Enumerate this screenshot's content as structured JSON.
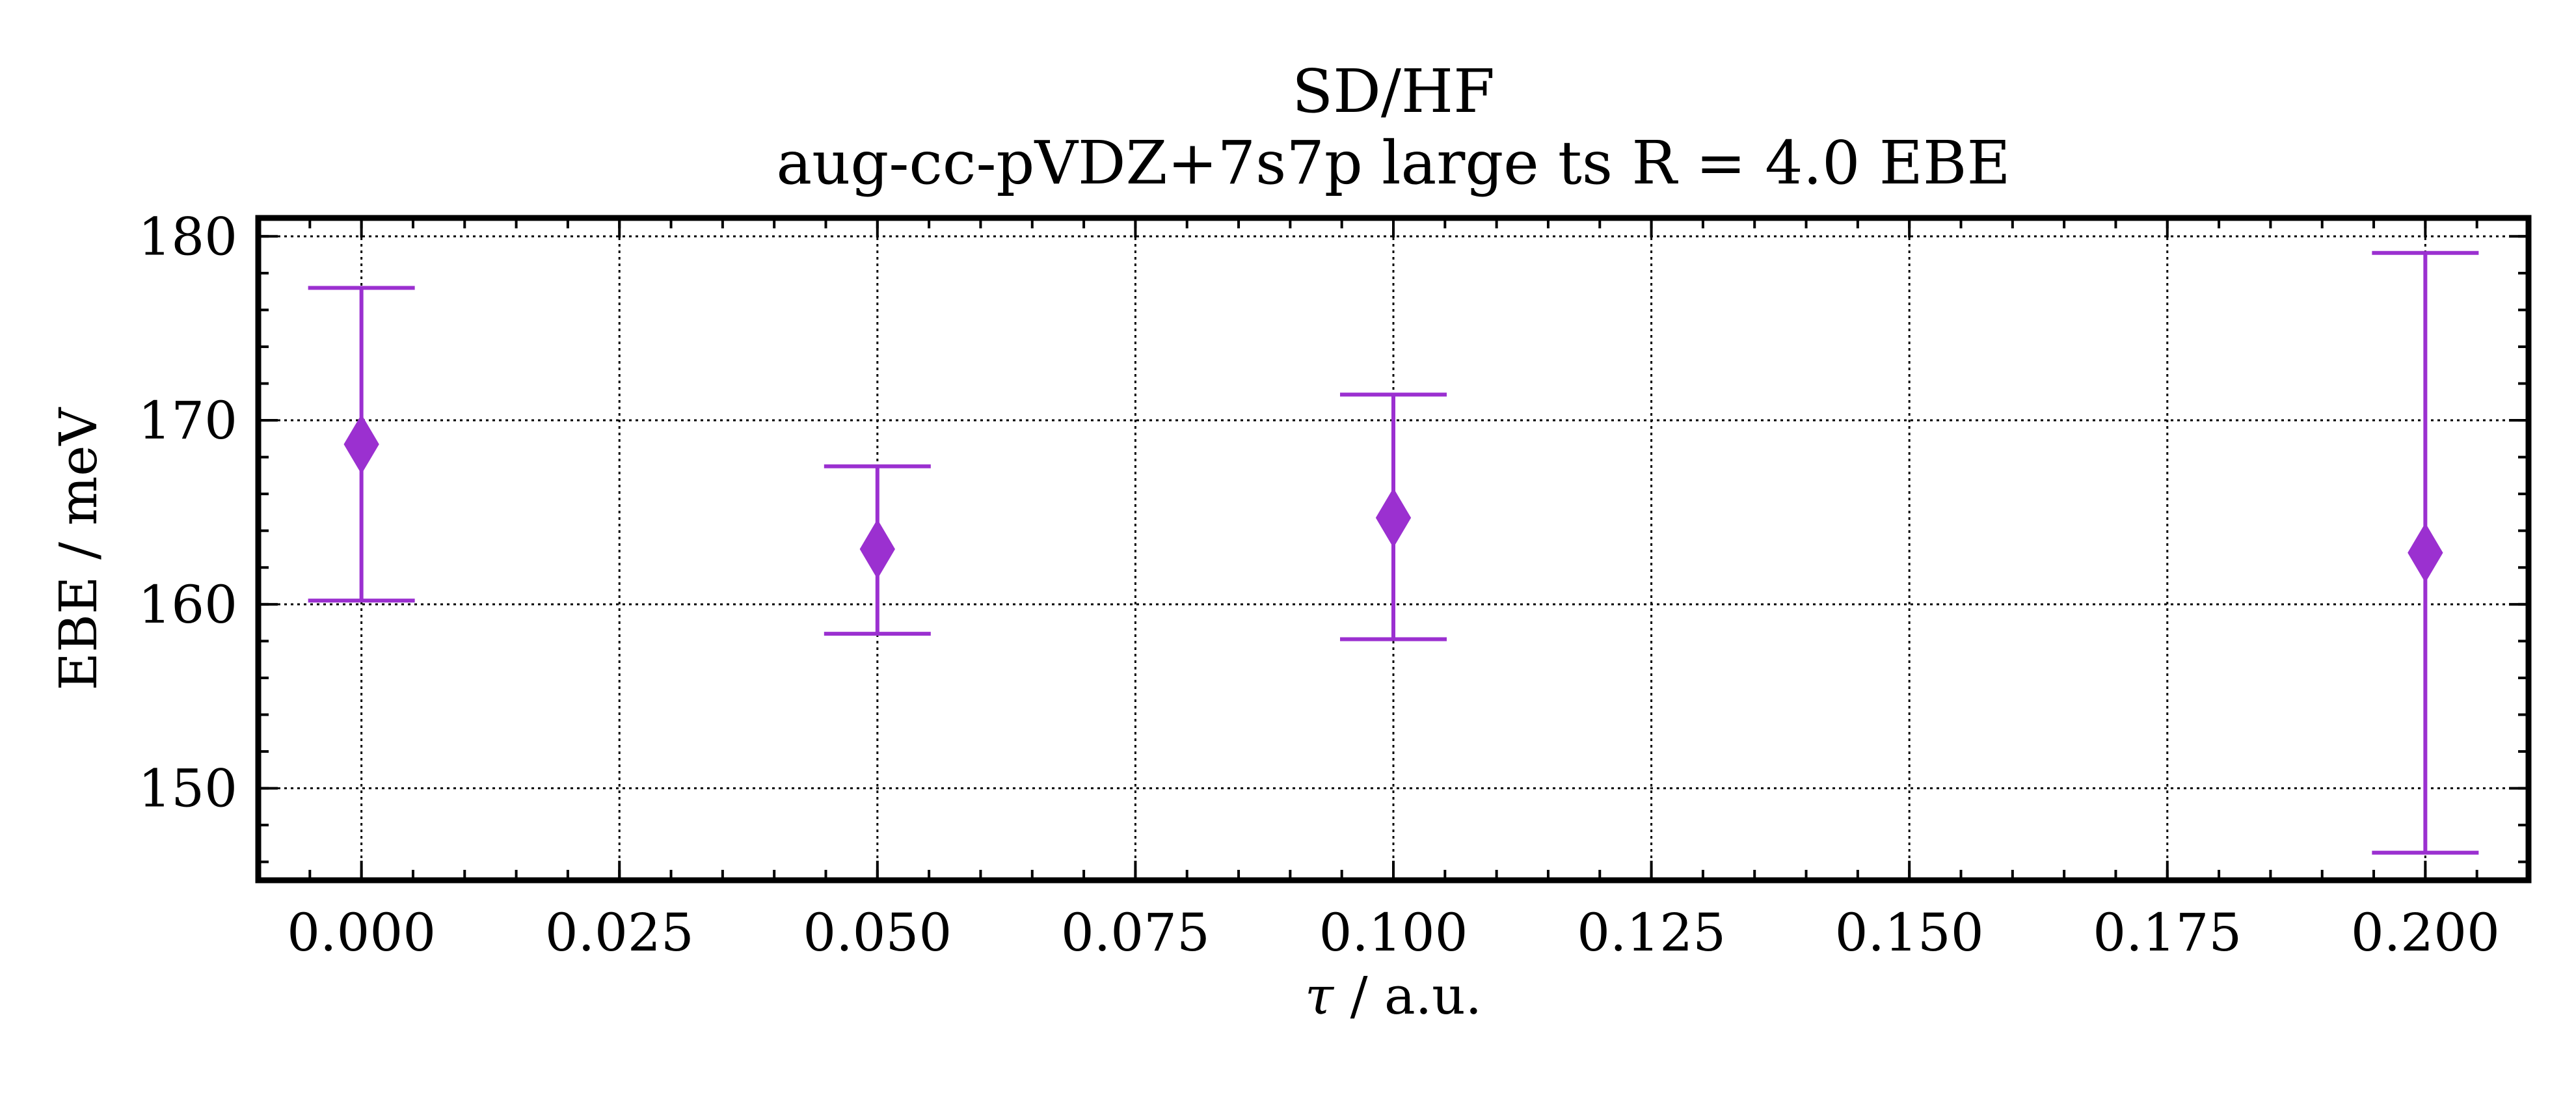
{
  "chart_data": {
    "type": "scatter",
    "title": "SD/HF",
    "subtitle": "aug-cc-pVDZ+7s7p large ts R = 4.0 EBE",
    "xlabel_symbol": "τ",
    "xlabel": " / a.u.",
    "ylabel": "EBE / meV",
    "xlim": [
      -0.01,
      0.21
    ],
    "ylim": [
      145,
      181
    ],
    "xticks": [
      0.0,
      0.025,
      0.05,
      0.075,
      0.1,
      0.125,
      0.15,
      0.175,
      0.2
    ],
    "xtick_labels": [
      "0.000",
      "0.025",
      "0.050",
      "0.075",
      "0.100",
      "0.125",
      "0.150",
      "0.175",
      "0.200"
    ],
    "yticks": [
      150,
      160,
      170,
      180
    ],
    "ytick_labels": [
      "150",
      "160",
      "170",
      "180"
    ],
    "grid": true,
    "marker": "diamond",
    "color": "#9b30d0",
    "series": [
      {
        "x": [
          0.0,
          0.05,
          0.1,
          0.2
        ],
        "y": [
          168.7,
          163.0,
          164.7,
          162.8
        ],
        "yerr_low": [
          160.2,
          158.4,
          158.1,
          146.5
        ],
        "yerr_high": [
          177.2,
          167.5,
          171.4,
          179.1
        ]
      }
    ]
  }
}
